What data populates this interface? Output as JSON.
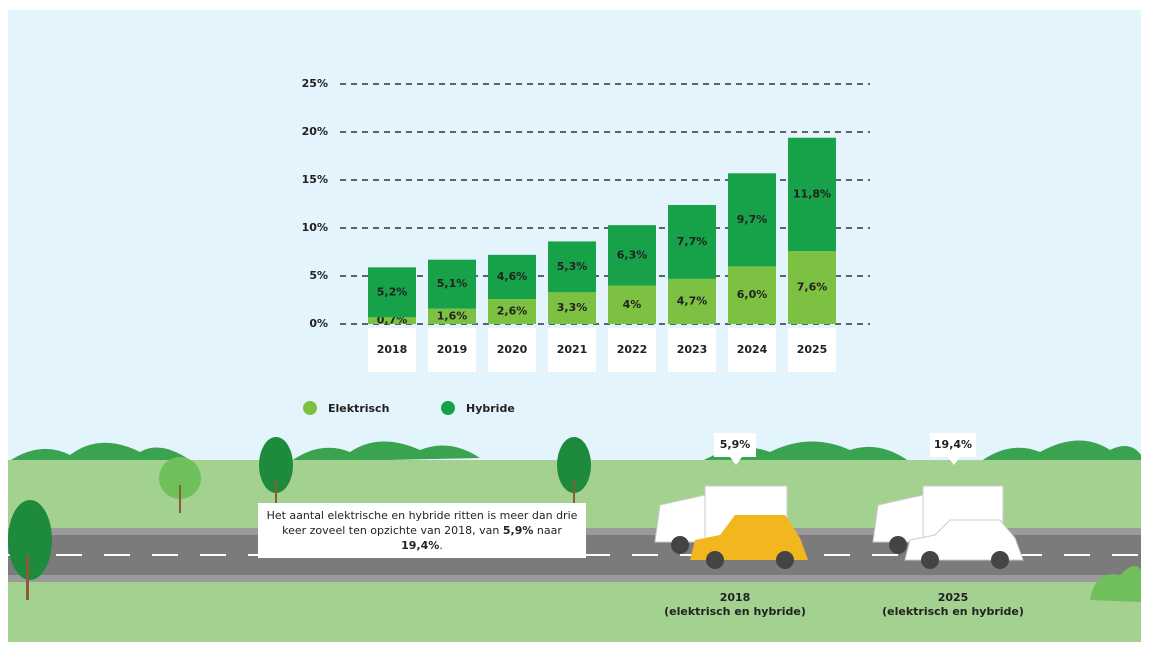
{
  "chart_data": {
    "type": "stacked_bar",
    "categories": [
      "2018",
      "2019",
      "2020",
      "2021",
      "2022",
      "2023",
      "2024",
      "2025"
    ],
    "series": [
      {
        "name": "Elektrisch",
        "color": "#7dc142",
        "values": [
          0.7,
          1.6,
          2.6,
          3.3,
          4,
          4.7,
          6.0,
          7.6
        ],
        "value_labels": [
          "0,7%",
          "1,6%",
          "2,6%",
          "3,3%",
          "4%",
          "4,7%",
          "6,0%",
          "7,6%"
        ]
      },
      {
        "name": "Hybride",
        "color": "#17a24a",
        "values": [
          5.2,
          5.1,
          4.6,
          5.3,
          6.3,
          7.7,
          9.7,
          11.8
        ],
        "value_labels": [
          "5,2%",
          "5,1%",
          "4,6%",
          "5,3%",
          "6,3%",
          "7,7%",
          "9,7%",
          "11,8%"
        ]
      }
    ],
    "ylim": [
      0,
      25
    ],
    "yticks": [
      {
        "value": 0,
        "label": "0%"
      },
      {
        "value": 5,
        "label": "5%"
      },
      {
        "value": 10,
        "label": "10%"
      },
      {
        "value": 15,
        "label": "15%"
      },
      {
        "value": 20,
        "label": "20%"
      },
      {
        "value": 25,
        "label": "25%"
      }
    ],
    "grid": true,
    "callout": {
      "parts": [
        "Het aantal elektrische en hybride ritten is meer dan drie keer zoveel ten opzichte van 2018, van ",
        "5,9%",
        " naar ",
        "19,4%",
        "."
      ]
    },
    "bubbles": [
      "5,9%",
      "19,4%"
    ],
    "captions": [
      {
        "year": "2018",
        "note": "(elektrisch en hybride)"
      },
      {
        "year": "2025",
        "note": "(elektrisch en hybride)"
      }
    ]
  }
}
